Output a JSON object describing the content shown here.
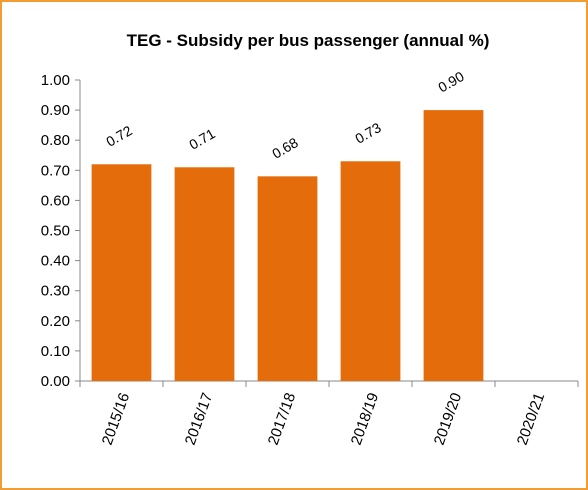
{
  "chart_data": {
    "type": "bar",
    "title": "TEG - Subsidy per bus passenger (annual %)",
    "categories": [
      "2015/16",
      "2016/17",
      "2017/18",
      "2018/19",
      "2019/20",
      "2020/21"
    ],
    "values": [
      0.72,
      0.71,
      0.68,
      0.73,
      0.9,
      null
    ],
    "value_labels": [
      "0.72",
      "0.71",
      "0.68",
      "0.73",
      "0.90",
      null
    ],
    "color": "#e46c0a",
    "ylim": [
      0,
      1
    ],
    "yticks": [
      {
        "value": 0,
        "label": "0.00"
      },
      {
        "value": 0.1,
        "label": "0.10"
      },
      {
        "value": 0.2,
        "label": "0.20"
      },
      {
        "value": 0.3,
        "label": "0.30"
      },
      {
        "value": 0.4,
        "label": "0.40"
      },
      {
        "value": 0.5,
        "label": "0.50"
      },
      {
        "value": 0.6,
        "label": "0.60"
      },
      {
        "value": 0.7,
        "label": "0.70"
      },
      {
        "value": 0.8,
        "label": "0.80"
      },
      {
        "value": 0.9,
        "label": "0.90"
      },
      {
        "value": 1,
        "label": "1.00"
      }
    ],
    "grid": false
  }
}
